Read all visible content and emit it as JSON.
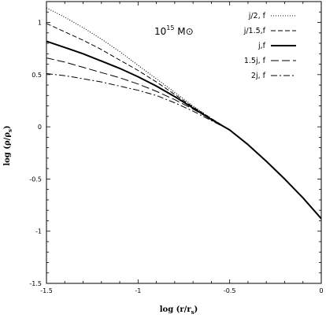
{
  "chart_data": {
    "type": "line",
    "xlabel_main": "log (r/r",
    "xlabel_sub": "s",
    "xlabel_tail": ")",
    "ylabel_main": "log (ρ/ρ",
    "ylabel_sub": "s",
    "ylabel_tail": ")",
    "annotation_base": "10",
    "annotation_exp": "15",
    "annotation_tail": " M⊙",
    "xlim": [
      -1.5,
      0
    ],
    "ylim": [
      -1.5,
      1.2
    ],
    "x_ticks": [
      -1.5,
      -1,
      -0.5,
      0
    ],
    "x_tick_labels": [
      "-1.5",
      "-1",
      "-0.5",
      "0"
    ],
    "y_ticks": [
      -1.5,
      -1,
      -0.5,
      0,
      0.5,
      1
    ],
    "y_tick_labels": [
      "-1.5",
      "-1",
      "-0.5",
      "0",
      "0.5",
      "1"
    ],
    "grid": false,
    "legend_position": "top-right",
    "x": [
      -1.5,
      -1.4,
      -1.3,
      -1.2,
      -1.1,
      -1.0,
      -0.9,
      -0.8,
      -0.7,
      -0.6,
      -0.5,
      -0.4,
      -0.3,
      -0.2,
      -0.1,
      0.0
    ],
    "series": [
      {
        "name": "j/2,  f",
        "dash": "1,2",
        "width": 1.1,
        "values": [
          1.14,
          1.05,
          0.95,
          0.84,
          0.72,
          0.59,
          0.46,
          0.33,
          0.2,
          0.08,
          -0.03,
          -0.17,
          -0.33,
          -0.5,
          -0.68,
          -0.88
        ]
      },
      {
        "name": "j/1.5,f",
        "dash": "6,3",
        "width": 1.0,
        "values": [
          0.99,
          0.91,
          0.83,
          0.74,
          0.64,
          0.54,
          0.43,
          0.31,
          0.19,
          0.08,
          -0.03,
          -0.17,
          -0.33,
          -0.5,
          -0.68,
          -0.88
        ]
      },
      {
        "name": "j,f",
        "dash": "",
        "width": 2.0,
        "values": [
          0.82,
          0.76,
          0.7,
          0.63,
          0.56,
          0.48,
          0.39,
          0.29,
          0.18,
          0.07,
          -0.03,
          -0.17,
          -0.33,
          -0.5,
          -0.68,
          -0.88
        ]
      },
      {
        "name": "1.5j,  f",
        "dash": "10,4",
        "width": 1.0,
        "values": [
          0.66,
          0.62,
          0.57,
          0.52,
          0.47,
          0.41,
          0.34,
          0.26,
          0.17,
          0.07,
          -0.03,
          -0.17,
          -0.33,
          -0.5,
          -0.68,
          -0.88
        ]
      },
      {
        "name": "2j,    f",
        "dash": "8,3,2,3",
        "width": 1.0,
        "values": [
          0.51,
          0.49,
          0.46,
          0.43,
          0.39,
          0.35,
          0.3,
          0.23,
          0.15,
          0.06,
          -0.03,
          -0.17,
          -0.33,
          -0.5,
          -0.68,
          -0.88
        ]
      }
    ]
  }
}
